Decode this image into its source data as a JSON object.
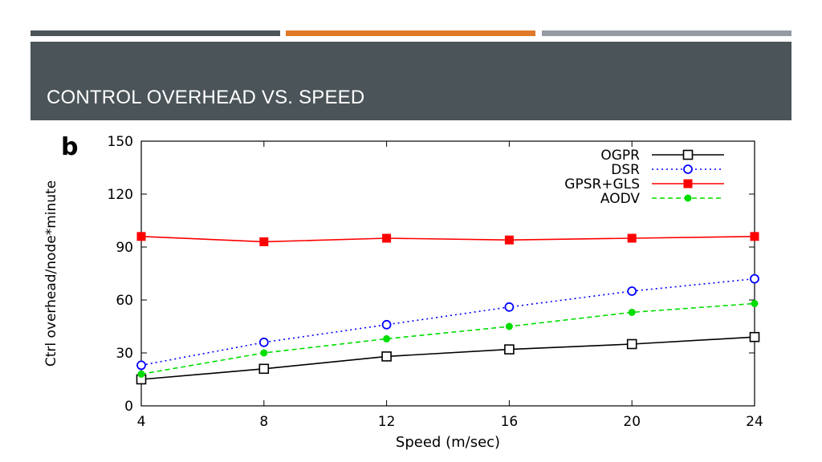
{
  "slide": {
    "title": "CONTROL OVERHEAD VS. SPEED",
    "accent_colors": [
      "#4a5459",
      "#e07a2a",
      "#959ba2"
    ],
    "header_color": "#4b5458"
  },
  "chart_data": {
    "type": "line",
    "panel_label": "b",
    "xlabel": "Speed (m/sec)",
    "ylabel": "Ctrl overhead/node*minute",
    "x": [
      4,
      8,
      12,
      16,
      20,
      24
    ],
    "xticks": [
      "4",
      "8",
      "12",
      "16",
      "20",
      "24"
    ],
    "yticks": [
      "0",
      "30",
      "60",
      "90",
      "120",
      "150"
    ],
    "xlim": [
      4,
      24
    ],
    "ylim": [
      0,
      150
    ],
    "legend_position": "top-right",
    "series": [
      {
        "name": "OGPR",
        "values": [
          15,
          21,
          28,
          32,
          35,
          39
        ],
        "color": "#000000",
        "dash": "",
        "marker": "square-open"
      },
      {
        "name": "DSR",
        "values": [
          23,
          36,
          46,
          56,
          65,
          72
        ],
        "color": "#0000ff",
        "dash": "2,4",
        "marker": "circle-open"
      },
      {
        "name": "GPSR+GLS",
        "values": [
          96,
          93,
          95,
          94,
          95,
          96
        ],
        "color": "#ff0000",
        "dash": "",
        "marker": "square-filled"
      },
      {
        "name": "AODV",
        "values": [
          18,
          30,
          38,
          45,
          53,
          58
        ],
        "color": "#00dd00",
        "dash": "6,4",
        "marker": "circle-filled"
      }
    ]
  }
}
